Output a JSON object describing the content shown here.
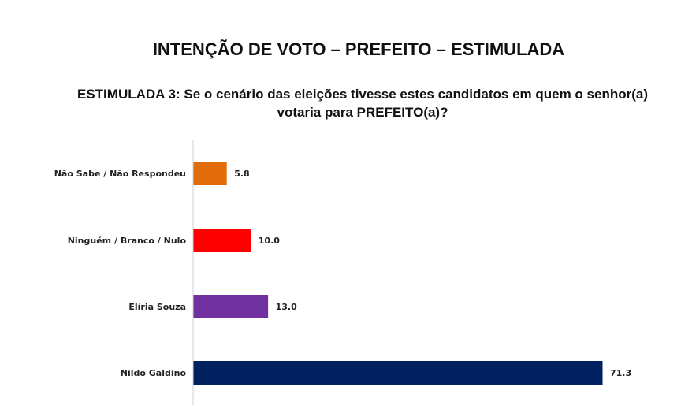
{
  "chart_data": {
    "type": "bar",
    "orientation": "horizontal",
    "title": "INTENÇÃO DE VOTO – PREFEITO – ESTIMULADA",
    "subtitle": "ESTIMULADA 3: Se o cenário das eleições tivesse estes candidatos em quem o senhor(a) votaria para PREFEITO(a)?",
    "categories": [
      "Não Sabe / Não Respondeu",
      "Ninguém / Branco / Nulo",
      "Elíria Souza",
      "Nildo Galdino"
    ],
    "values": [
      5.8,
      10.0,
      13.0,
      71.3
    ],
    "value_labels": [
      "5.8",
      "10.0",
      "13.0",
      "71.3"
    ],
    "colors": [
      "#E36C0A",
      "#FF0000",
      "#7030A0",
      "#002060"
    ],
    "xlabel": "",
    "ylabel": "",
    "xlim": [
      0,
      71.3
    ],
    "grid": false
  }
}
